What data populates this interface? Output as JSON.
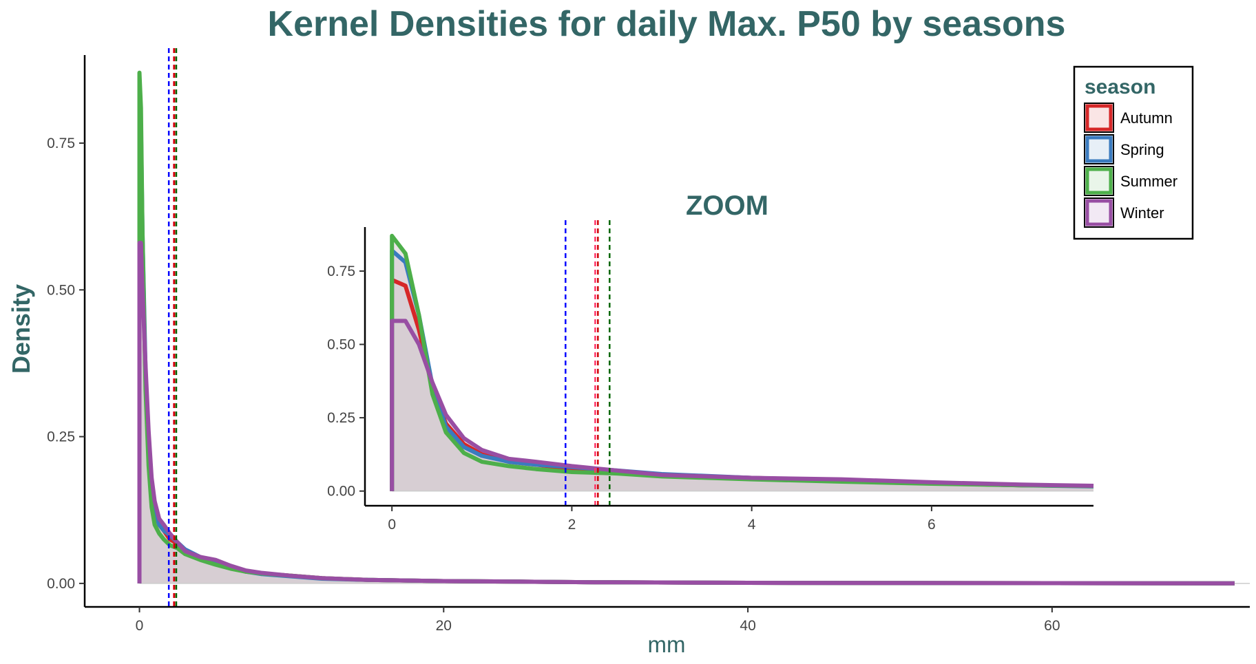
{
  "colors": {
    "title": "#336666",
    "Autumn": "#d62728",
    "Spring": "#3a7bbf",
    "Summer": "#4daf4a",
    "Winter": "#984ea3",
    "fill": "#d6ccd2",
    "median_blue": "#0000ff",
    "median_red": "#cc0000",
    "median_pink": "#ff3366",
    "median_green": "#006600"
  },
  "chart_data": [
    {
      "panel": "main",
      "type": "area",
      "title": "Kernel Densities for daily Max. P50 by seasons",
      "xlabel": "mm",
      "ylabel": "Density",
      "xlim": [
        -3.6,
        73
      ],
      "ylim": [
        -0.04,
        0.9
      ],
      "xticks": [
        "0",
        "20",
        "40",
        "60"
      ],
      "yticks": [
        "0.00",
        "0.25",
        "0.50",
        "0.75"
      ],
      "grid": false,
      "legend": {
        "title": "season",
        "position": "top-right",
        "entries": [
          "Autumn",
          "Spring",
          "Summer",
          "Winter"
        ]
      },
      "series": [
        {
          "name": "Autumn",
          "x": [
            0,
            0.1,
            0.2,
            0.4,
            0.6,
            0.8,
            1.0,
            1.3,
            1.6,
            2,
            2.5,
            3,
            4,
            5,
            6,
            7,
            8,
            10,
            12,
            15,
            20,
            25,
            30,
            40,
            50,
            60,
            72
          ],
          "y": [
            0.72,
            0.7,
            0.55,
            0.35,
            0.23,
            0.16,
            0.125,
            0.1,
            0.09,
            0.075,
            0.068,
            0.055,
            0.045,
            0.037,
            0.027,
            0.02,
            0.017,
            0.013,
            0.009,
            0.006,
            0.004,
            0.003,
            0.002,
            0.001,
            0.0007,
            0.0004,
            0.0002
          ]
        },
        {
          "name": "Spring",
          "x": [
            0,
            0.1,
            0.2,
            0.4,
            0.6,
            0.8,
            1.0,
            1.3,
            1.6,
            2,
            2.5,
            3,
            4,
            5,
            6,
            7,
            8,
            10,
            12,
            15,
            20,
            25,
            30,
            40,
            50,
            60,
            72
          ],
          "y": [
            0.82,
            0.78,
            0.6,
            0.36,
            0.22,
            0.15,
            0.12,
            0.1,
            0.09,
            0.082,
            0.07,
            0.058,
            0.045,
            0.035,
            0.027,
            0.02,
            0.016,
            0.012,
            0.008,
            0.006,
            0.004,
            0.003,
            0.002,
            0.001,
            0.0007,
            0.0004,
            0.0002
          ]
        },
        {
          "name": "Summer",
          "x": [
            0,
            0.1,
            0.2,
            0.4,
            0.6,
            0.8,
            1.0,
            1.3,
            1.6,
            2,
            2.5,
            3,
            4,
            5,
            6,
            7,
            8,
            10,
            12,
            15,
            20,
            25,
            30,
            40,
            50,
            60,
            72
          ],
          "y": [
            0.87,
            0.81,
            0.6,
            0.33,
            0.2,
            0.13,
            0.1,
            0.085,
            0.075,
            0.065,
            0.06,
            0.05,
            0.04,
            0.032,
            0.025,
            0.02,
            0.017,
            0.013,
            0.009,
            0.006,
            0.004,
            0.003,
            0.002,
            0.001,
            0.0007,
            0.0004,
            0.0002
          ]
        },
        {
          "name": "Winter",
          "x": [
            0,
            0.1,
            0.2,
            0.4,
            0.6,
            0.8,
            1.0,
            1.3,
            1.6,
            2,
            2.5,
            3,
            4,
            5,
            6,
            7,
            8,
            10,
            12,
            15,
            20,
            25,
            30,
            40,
            50,
            60,
            72
          ],
          "y": [
            0.58,
            0.58,
            0.5,
            0.37,
            0.26,
            0.18,
            0.14,
            0.11,
            0.1,
            0.085,
            0.07,
            0.055,
            0.045,
            0.04,
            0.03,
            0.022,
            0.018,
            0.013,
            0.009,
            0.006,
            0.004,
            0.003,
            0.002,
            0.001,
            0.0007,
            0.0004,
            0.0002
          ]
        }
      ],
      "vlines": [
        {
          "x": 1.93,
          "color": "#0000ff",
          "dash": true
        },
        {
          "x": 2.26,
          "color": "#ff3366",
          "dash": true
        },
        {
          "x": 2.29,
          "color": "#cc0000",
          "dash": true
        },
        {
          "x": 2.42,
          "color": "#006600",
          "dash": true
        }
      ]
    },
    {
      "panel": "zoom",
      "type": "area",
      "title": "ZOOM",
      "xlabel": "",
      "ylabel": "",
      "xlim": [
        -0.3,
        7.8
      ],
      "ylim": [
        -0.05,
        0.9
      ],
      "xticks": [
        "0",
        "2",
        "4",
        "6"
      ],
      "yticks": [
        "0.00",
        "0.25",
        "0.50",
        "0.75"
      ],
      "grid": false,
      "series": [
        {
          "name": "Autumn",
          "x": [
            0,
            0.15,
            0.3,
            0.45,
            0.6,
            0.8,
            1.0,
            1.3,
            1.6,
            2.0,
            2.5,
            3.0,
            4.0,
            5.0,
            6.0,
            7.0,
            7.8
          ],
          "y": [
            0.72,
            0.7,
            0.55,
            0.35,
            0.23,
            0.16,
            0.125,
            0.1,
            0.09,
            0.075,
            0.068,
            0.055,
            0.045,
            0.037,
            0.027,
            0.02,
            0.017
          ]
        },
        {
          "name": "Spring",
          "x": [
            0,
            0.15,
            0.3,
            0.45,
            0.6,
            0.8,
            1.0,
            1.3,
            1.6,
            2.0,
            2.5,
            3.0,
            4.0,
            5.0,
            6.0,
            7.0,
            7.8
          ],
          "y": [
            0.82,
            0.78,
            0.6,
            0.36,
            0.22,
            0.15,
            0.12,
            0.1,
            0.09,
            0.082,
            0.07,
            0.058,
            0.045,
            0.035,
            0.027,
            0.02,
            0.016
          ]
        },
        {
          "name": "Summer",
          "x": [
            0,
            0.15,
            0.3,
            0.45,
            0.6,
            0.8,
            1.0,
            1.3,
            1.6,
            2.0,
            2.5,
            3.0,
            4.0,
            5.0,
            6.0,
            7.0,
            7.8
          ],
          "y": [
            0.87,
            0.81,
            0.6,
            0.33,
            0.2,
            0.13,
            0.1,
            0.085,
            0.075,
            0.065,
            0.06,
            0.05,
            0.04,
            0.032,
            0.025,
            0.02,
            0.017
          ]
        },
        {
          "name": "Winter",
          "x": [
            0,
            0.15,
            0.3,
            0.45,
            0.6,
            0.8,
            1.0,
            1.3,
            1.6,
            2.0,
            2.5,
            3.0,
            4.0,
            5.0,
            6.0,
            7.0,
            7.8
          ],
          "y": [
            0.58,
            0.58,
            0.5,
            0.37,
            0.26,
            0.18,
            0.14,
            0.11,
            0.1,
            0.085,
            0.07,
            0.055,
            0.045,
            0.04,
            0.03,
            0.022,
            0.018
          ]
        }
      ],
      "vlines": [
        {
          "x": 1.93,
          "color": "#0000ff",
          "dash": true
        },
        {
          "x": 2.26,
          "color": "#ff3366",
          "dash": true
        },
        {
          "x": 2.29,
          "color": "#cc0000",
          "dash": true
        },
        {
          "x": 2.42,
          "color": "#006600",
          "dash": true
        }
      ]
    }
  ]
}
